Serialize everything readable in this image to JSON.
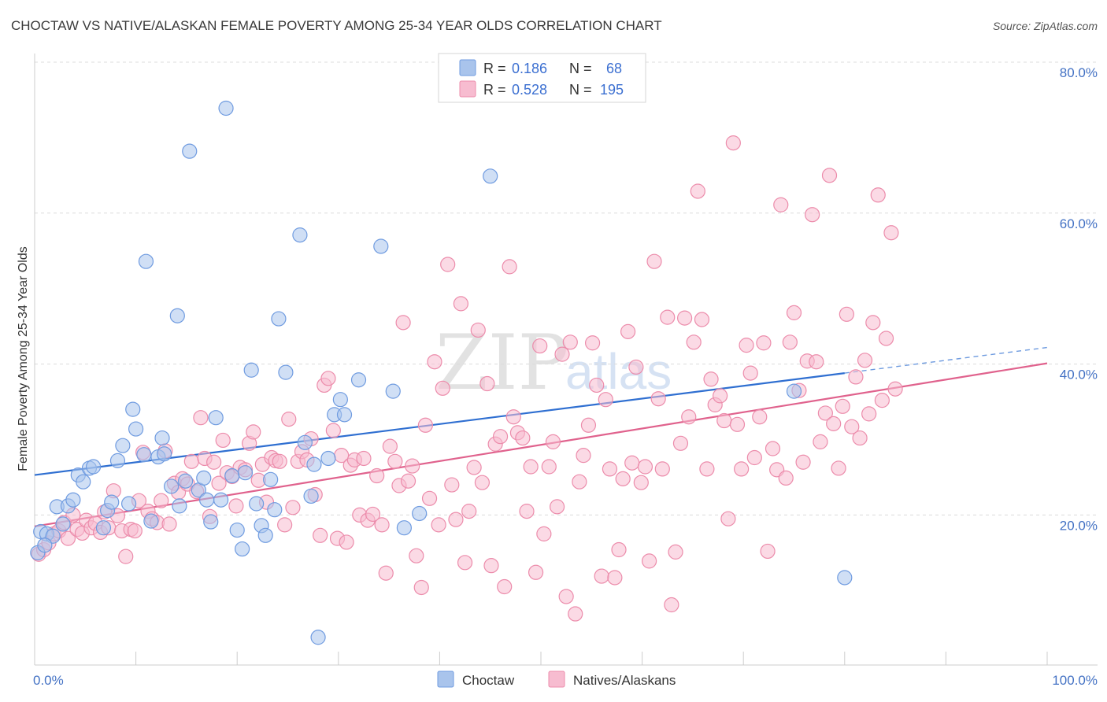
{
  "title": "CHOCTAW VS NATIVE/ALASKAN FEMALE POVERTY AMONG 25-34 YEAR OLDS CORRELATION CHART",
  "source": "Source: ZipAtlas.com",
  "watermark": {
    "zip": "ZIP",
    "atlas": "atlas"
  },
  "legend": {
    "rows": [
      {
        "r_label": "R =",
        "r_value": "0.186",
        "n_label": "N =",
        "n_value": "68",
        "color": "#a9c4ec",
        "stroke": "#6f9be0"
      },
      {
        "r_label": "R =",
        "r_value": "0.528",
        "n_label": "N =",
        "n_value": "195",
        "color": "#f7bcd0",
        "stroke": "#ec8cab"
      }
    ]
  },
  "bottom_legend": {
    "items": [
      {
        "label": "Choctaw",
        "color": "#a9c4ec",
        "stroke": "#6f9be0"
      },
      {
        "label": "Natives/Alaskans",
        "color": "#f7bcd0",
        "stroke": "#ec8cab"
      }
    ]
  },
  "chart_data": {
    "type": "scatter",
    "title": "CHOCTAW VS NATIVE/ALASKAN FEMALE POVERTY AMONG 25-34 YEAR OLDS CORRELATION CHART",
    "xlabel": "",
    "ylabel": "Female Poverty Among 25-34 Year Olds",
    "xlim": [
      0,
      100
    ],
    "ylim": [
      0,
      85
    ],
    "x_tick_labels": [
      "0.0%",
      "100.0%"
    ],
    "y_ticks": [
      20,
      40,
      60,
      80
    ],
    "y_tick_labels": [
      "20.0%",
      "40.0%",
      "60.0%",
      "80.0%"
    ],
    "grid": true,
    "legend_position": "top-center",
    "colors": {
      "choctaw_fill": "#a9c4ec",
      "choctaw_stroke": "#6f9be0",
      "choctaw_line": "#2f6fd1",
      "native_fill": "#f7bcd0",
      "native_stroke": "#ec8cab",
      "native_line": "#e0628d"
    },
    "series": [
      {
        "name": "Choctaw",
        "r": 0.186,
        "n": 68,
        "trend": {
          "x": [
            0,
            80
          ],
          "y": [
            25.3,
            38.8
          ]
        },
        "trend_dashed": {
          "x": [
            80,
            100
          ],
          "y": [
            38.8,
            42.2
          ]
        },
        "points": [
          [
            0.6,
            17.8
          ],
          [
            1.2,
            17.5
          ],
          [
            1.8,
            17.2
          ],
          [
            2.2,
            21.1
          ],
          [
            2.8,
            18.8
          ],
          [
            3.3,
            21.2
          ],
          [
            3.8,
            22.0
          ],
          [
            4.3,
            25.3
          ],
          [
            4.8,
            24.4
          ],
          [
            5.4,
            26.2
          ],
          [
            5.8,
            26.4
          ],
          [
            6.8,
            18.3
          ],
          [
            7.2,
            20.6
          ],
          [
            7.6,
            21.7
          ],
          [
            8.2,
            27.2
          ],
          [
            8.7,
            29.2
          ],
          [
            9.3,
            21.5
          ],
          [
            9.7,
            34.0
          ],
          [
            10.0,
            31.4
          ],
          [
            10.8,
            28.0
          ],
          [
            11.0,
            53.6
          ],
          [
            11.5,
            19.2
          ],
          [
            12.2,
            27.7
          ],
          [
            12.6,
            30.2
          ],
          [
            12.8,
            28.1
          ],
          [
            13.5,
            23.8
          ],
          [
            14.1,
            46.4
          ],
          [
            14.3,
            21.2
          ],
          [
            14.9,
            24.5
          ],
          [
            15.3,
            68.2
          ],
          [
            16.2,
            23.3
          ],
          [
            16.7,
            24.9
          ],
          [
            17.0,
            22.0
          ],
          [
            17.4,
            19.1
          ],
          [
            17.9,
            32.9
          ],
          [
            18.4,
            22.0
          ],
          [
            18.9,
            73.9
          ],
          [
            19.5,
            25.2
          ],
          [
            20.0,
            18.0
          ],
          [
            20.5,
            15.5
          ],
          [
            20.8,
            25.6
          ],
          [
            21.4,
            39.2
          ],
          [
            21.9,
            21.5
          ],
          [
            22.4,
            18.6
          ],
          [
            22.8,
            17.3
          ],
          [
            23.3,
            24.7
          ],
          [
            23.7,
            20.7
          ],
          [
            24.1,
            46.0
          ],
          [
            24.8,
            38.9
          ],
          [
            26.2,
            57.1
          ],
          [
            26.7,
            29.6
          ],
          [
            27.3,
            22.5
          ],
          [
            27.6,
            26.7
          ],
          [
            28.0,
            3.8
          ],
          [
            29.0,
            27.5
          ],
          [
            29.6,
            33.3
          ],
          [
            30.2,
            35.3
          ],
          [
            30.6,
            33.3
          ],
          [
            32.0,
            37.9
          ],
          [
            34.2,
            55.6
          ],
          [
            35.4,
            36.4
          ],
          [
            36.5,
            18.3
          ],
          [
            38.0,
            20.2
          ],
          [
            45.0,
            64.9
          ],
          [
            75.0,
            36.4
          ],
          [
            80.0,
            11.7
          ],
          [
            0.3,
            15.0
          ],
          [
            1.0,
            16.0
          ]
        ]
      },
      {
        "name": "Natives/Alaskans",
        "r": 0.528,
        "n": 195,
        "trend": {
          "x": [
            0,
            100
          ],
          "y": [
            18.5,
            40.1
          ]
        },
        "points": [
          [
            0.4,
            14.8
          ],
          [
            0.9,
            15.4
          ],
          [
            1.4,
            16.3
          ],
          [
            1.9,
            17.5
          ],
          [
            2.4,
            17.9
          ],
          [
            2.9,
            19.0
          ],
          [
            3.3,
            16.9
          ],
          [
            3.8,
            20.0
          ],
          [
            4.2,
            18.1
          ],
          [
            4.7,
            17.6
          ],
          [
            5.1,
            19.3
          ],
          [
            5.6,
            18.3
          ],
          [
            6.0,
            18.9
          ],
          [
            6.5,
            17.7
          ],
          [
            6.9,
            20.4
          ],
          [
            7.3,
            18.3
          ],
          [
            7.8,
            23.2
          ],
          [
            8.2,
            19.9
          ],
          [
            8.6,
            17.9
          ],
          [
            9.0,
            14.5
          ],
          [
            9.5,
            18.1
          ],
          [
            9.9,
            17.9
          ],
          [
            10.3,
            21.9
          ],
          [
            10.7,
            28.3
          ],
          [
            11.2,
            20.5
          ],
          [
            11.6,
            19.5
          ],
          [
            12.1,
            19.0
          ],
          [
            12.5,
            21.9
          ],
          [
            12.9,
            28.5
          ],
          [
            13.3,
            18.8
          ],
          [
            13.8,
            24.2
          ],
          [
            14.2,
            23.0
          ],
          [
            14.6,
            24.8
          ],
          [
            15.1,
            24.1
          ],
          [
            15.5,
            27.1
          ],
          [
            16.0,
            23.1
          ],
          [
            16.4,
            32.9
          ],
          [
            16.8,
            27.5
          ],
          [
            17.3,
            19.8
          ],
          [
            17.7,
            27.0
          ],
          [
            18.2,
            24.2
          ],
          [
            18.6,
            29.9
          ],
          [
            19.0,
            25.6
          ],
          [
            19.5,
            25.1
          ],
          [
            19.9,
            21.2
          ],
          [
            20.3,
            26.3
          ],
          [
            20.8,
            26.0
          ],
          [
            21.2,
            29.5
          ],
          [
            21.6,
            31.0
          ],
          [
            22.1,
            24.6
          ],
          [
            22.5,
            26.7
          ],
          [
            22.9,
            21.7
          ],
          [
            23.4,
            27.6
          ],
          [
            23.8,
            27.2
          ],
          [
            24.2,
            27.1
          ],
          [
            24.7,
            18.7
          ],
          [
            25.1,
            32.7
          ],
          [
            25.5,
            21.0
          ],
          [
            26.0,
            27.1
          ],
          [
            26.4,
            28.4
          ],
          [
            26.9,
            27.3
          ],
          [
            27.3,
            30.1
          ],
          [
            27.7,
            22.7
          ],
          [
            28.2,
            17.3
          ],
          [
            28.6,
            37.2
          ],
          [
            29.0,
            38.1
          ],
          [
            29.5,
            31.2
          ],
          [
            29.9,
            16.9
          ],
          [
            30.3,
            27.9
          ],
          [
            30.8,
            16.4
          ],
          [
            31.2,
            26.6
          ],
          [
            31.6,
            27.3
          ],
          [
            32.1,
            20.0
          ],
          [
            32.5,
            27.5
          ],
          [
            32.9,
            19.3
          ],
          [
            33.4,
            20.1
          ],
          [
            33.8,
            25.2
          ],
          [
            34.3,
            18.7
          ],
          [
            34.7,
            12.3
          ],
          [
            35.1,
            29.1
          ],
          [
            35.6,
            27.1
          ],
          [
            36.0,
            23.9
          ],
          [
            36.4,
            45.5
          ],
          [
            36.9,
            24.5
          ],
          [
            37.3,
            26.5
          ],
          [
            37.7,
            14.6
          ],
          [
            38.2,
            10.4
          ],
          [
            38.6,
            31.9
          ],
          [
            39.0,
            22.2
          ],
          [
            39.5,
            40.3
          ],
          [
            39.9,
            18.7
          ],
          [
            40.3,
            36.8
          ],
          [
            40.8,
            53.2
          ],
          [
            41.2,
            24.0
          ],
          [
            41.6,
            19.4
          ],
          [
            42.1,
            48.0
          ],
          [
            42.5,
            13.7
          ],
          [
            42.9,
            20.5
          ],
          [
            43.4,
            26.3
          ],
          [
            43.8,
            44.5
          ],
          [
            44.2,
            24.3
          ],
          [
            44.7,
            37.4
          ],
          [
            45.1,
            13.3
          ],
          [
            45.5,
            29.4
          ],
          [
            46.0,
            30.4
          ],
          [
            46.4,
            10.5
          ],
          [
            46.9,
            52.9
          ],
          [
            47.3,
            33.0
          ],
          [
            47.7,
            30.9
          ],
          [
            48.2,
            30.2
          ],
          [
            48.6,
            20.5
          ],
          [
            49.0,
            26.4
          ],
          [
            49.5,
            12.4
          ],
          [
            49.9,
            42.4
          ],
          [
            50.3,
            17.5
          ],
          [
            50.8,
            26.4
          ],
          [
            51.2,
            29.7
          ],
          [
            51.6,
            21.1
          ],
          [
            52.1,
            41.3
          ],
          [
            52.5,
            9.2
          ],
          [
            52.9,
            42.9
          ],
          [
            53.4,
            6.9
          ],
          [
            53.8,
            24.4
          ],
          [
            54.2,
            27.9
          ],
          [
            54.7,
            31.9
          ],
          [
            55.1,
            42.8
          ],
          [
            55.5,
            37.2
          ],
          [
            56.0,
            11.9
          ],
          [
            56.4,
            35.3
          ],
          [
            56.8,
            26.1
          ],
          [
            57.3,
            11.7
          ],
          [
            57.7,
            15.4
          ],
          [
            58.1,
            24.8
          ],
          [
            58.6,
            44.3
          ],
          [
            59.0,
            26.9
          ],
          [
            59.4,
            39.6
          ],
          [
            59.9,
            24.3
          ],
          [
            60.3,
            26.4
          ],
          [
            60.7,
            13.9
          ],
          [
            61.2,
            53.6
          ],
          [
            61.6,
            35.4
          ],
          [
            62.0,
            26.1
          ],
          [
            62.5,
            46.2
          ],
          [
            62.9,
            8.1
          ],
          [
            63.3,
            15.1
          ],
          [
            63.8,
            29.5
          ],
          [
            64.2,
            46.1
          ],
          [
            64.6,
            33.0
          ],
          [
            65.1,
            42.9
          ],
          [
            65.5,
            62.9
          ],
          [
            65.9,
            45.9
          ],
          [
            66.4,
            26.1
          ],
          [
            66.8,
            38.0
          ],
          [
            67.2,
            34.6
          ],
          [
            67.7,
            35.8
          ],
          [
            68.1,
            32.5
          ],
          [
            68.5,
            19.5
          ],
          [
            69.0,
            69.3
          ],
          [
            69.4,
            32.0
          ],
          [
            69.8,
            26.1
          ],
          [
            70.3,
            42.5
          ],
          [
            70.7,
            38.8
          ],
          [
            71.1,
            27.6
          ],
          [
            71.6,
            33.0
          ],
          [
            72.0,
            42.8
          ],
          [
            72.4,
            15.2
          ],
          [
            72.9,
            28.8
          ],
          [
            73.3,
            26.0
          ],
          [
            73.7,
            61.1
          ],
          [
            74.2,
            24.9
          ],
          [
            74.6,
            42.9
          ],
          [
            75.0,
            46.8
          ],
          [
            75.5,
            36.5
          ],
          [
            75.9,
            27.0
          ],
          [
            76.3,
            40.4
          ],
          [
            76.8,
            59.8
          ],
          [
            77.2,
            40.3
          ],
          [
            77.6,
            29.7
          ],
          [
            78.1,
            33.5
          ],
          [
            78.5,
            65.0
          ],
          [
            78.9,
            32.1
          ],
          [
            79.4,
            26.2
          ],
          [
            79.8,
            34.4
          ],
          [
            80.2,
            46.6
          ],
          [
            80.7,
            31.7
          ],
          [
            81.1,
            38.3
          ],
          [
            81.5,
            30.2
          ],
          [
            82.0,
            40.5
          ],
          [
            82.4,
            33.4
          ],
          [
            82.8,
            45.5
          ],
          [
            83.3,
            62.4
          ],
          [
            83.7,
            35.2
          ],
          [
            84.1,
            43.4
          ],
          [
            84.6,
            57.4
          ],
          [
            85.0,
            36.7
          ]
        ]
      }
    ]
  }
}
